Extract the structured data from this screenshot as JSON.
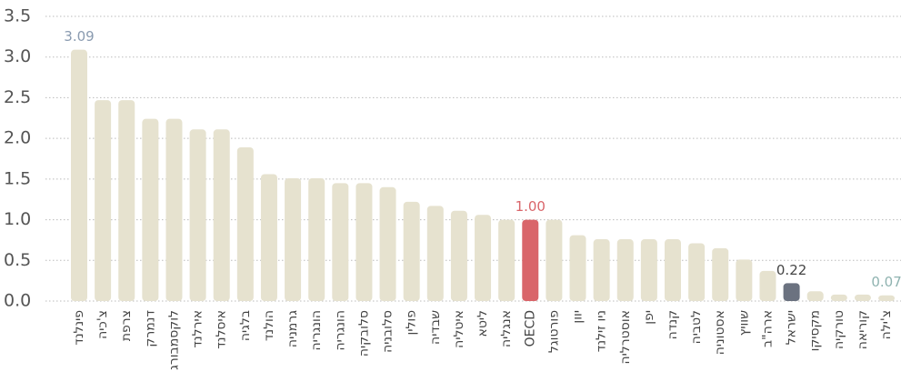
{
  "chart_data": {
    "type": "bar",
    "categories": [
      "פינלנד",
      "צ'כיה",
      "צרפת",
      "דנמרק",
      "לוקסמבורג",
      "אירלנד",
      "איסלנד",
      "בלגיה",
      "הולנד",
      "גרמניה",
      "הונגריה",
      "הונגריה",
      "סלובקיה",
      "סלובניה",
      "פולין",
      "שבדיה",
      "איטליה",
      "ליטא",
      "אנגליה",
      "OECD",
      "פורטוגל",
      "יוון",
      "ניו זילנד",
      "אוסטרליה",
      "יפן",
      "קנדה",
      "לטביה",
      "אסטוניה",
      "שוויץ",
      "ארה\"ב",
      "ישראל",
      "מקסיקו",
      "טורקיה",
      "קוריאה",
      "צ'ילה"
    ],
    "values": [
      3.09,
      2.47,
      2.47,
      2.24,
      2.24,
      2.11,
      2.11,
      1.89,
      1.56,
      1.51,
      1.51,
      1.45,
      1.45,
      1.4,
      1.22,
      1.17,
      1.11,
      1.06,
      1.0,
      1.0,
      1.0,
      0.81,
      0.76,
      0.76,
      0.76,
      0.76,
      0.71,
      0.65,
      0.51,
      0.37,
      0.22,
      0.12,
      0.08,
      0.08,
      0.07
    ],
    "value_labels": [
      "3.09",
      null,
      null,
      null,
      null,
      null,
      null,
      null,
      null,
      null,
      null,
      null,
      null,
      null,
      null,
      null,
      null,
      null,
      null,
      "1.00",
      null,
      null,
      null,
      null,
      null,
      null,
      null,
      null,
      null,
      null,
      "0.22",
      null,
      null,
      null,
      "0.07"
    ],
    "colors": [
      "#e6e2cf",
      "#e6e2cf",
      "#e6e2cf",
      "#e6e2cf",
      "#e6e2cf",
      "#e6e2cf",
      "#e6e2cf",
      "#e6e2cf",
      "#e6e2cf",
      "#e6e2cf",
      "#e6e2cf",
      "#e6e2cf",
      "#e6e2cf",
      "#e6e2cf",
      "#e6e2cf",
      "#e6e2cf",
      "#e6e2cf",
      "#e6e2cf",
      "#e6e2cf",
      "#d9656a",
      "#e6e2cf",
      "#e6e2cf",
      "#e6e2cf",
      "#e6e2cf",
      "#e6e2cf",
      "#e6e2cf",
      "#e6e2cf",
      "#e6e2cf",
      "#e6e2cf",
      "#e6e2cf",
      "#6b7280",
      "#e6e2cf",
      "#e6e2cf",
      "#e6e2cf",
      "#e6e2cf"
    ],
    "value_label_colors": [
      "#8a9bb0",
      null,
      null,
      null,
      null,
      null,
      null,
      null,
      null,
      null,
      null,
      null,
      null,
      null,
      null,
      null,
      null,
      null,
      null,
      "#d9656a",
      null,
      null,
      null,
      null,
      null,
      null,
      null,
      null,
      null,
      null,
      "#444444",
      null,
      null,
      null,
      "#8fb3b0"
    ],
    "category_colors": {
      "OECD": "#d9656a",
      "ישראל": "#7aa89a"
    },
    "ylim": [
      0,
      3.5
    ],
    "yticks": [
      {
        "value": 0,
        "label": "0.0"
      },
      {
        "value": 0.5,
        "label": "0.5"
      },
      {
        "value": 1,
        "label": "1.0"
      },
      {
        "value": 1.5,
        "label": "1.5"
      },
      {
        "value": 2,
        "label": "2.0"
      },
      {
        "value": 2.5,
        "label": "2.5"
      },
      {
        "value": 3,
        "label": "3.0"
      },
      {
        "value": 3.5,
        "label": "3.5"
      }
    ],
    "grid": true
  }
}
